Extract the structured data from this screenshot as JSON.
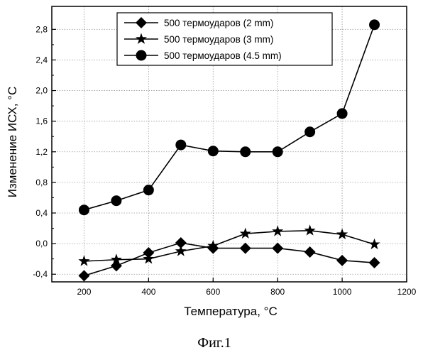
{
  "chart_data": {
    "type": "line",
    "xlabel": "Температура, °C",
    "ylabel": "Изменение  ИСХ, °C",
    "caption": "Фиг.1",
    "xlim": [
      100,
      1200
    ],
    "ylim": [
      -0.5,
      3.1
    ],
    "x_ticks": [
      200,
      400,
      600,
      800,
      1000,
      1200
    ],
    "x_tick_labels": [
      "200",
      "400",
      "600",
      "800",
      "1000",
      "1200"
    ],
    "y_ticks": [
      -0.4,
      0.0,
      0.4,
      0.8,
      1.2,
      1.6,
      2.0,
      2.4,
      2.8
    ],
    "y_tick_labels": [
      "-0,4",
      "0,0",
      "0,4",
      "0,8",
      "1,2",
      "1,6",
      "2,0",
      "2,4",
      "2,8"
    ],
    "grid": true,
    "legend_position": "top-right",
    "x": [
      200,
      300,
      400,
      500,
      600,
      700,
      800,
      900,
      1000,
      1100
    ],
    "series": [
      {
        "name": "500 термоударов (2 mm)",
        "marker": "diamond",
        "values": [
          -0.42,
          -0.29,
          -0.12,
          0.01,
          -0.06,
          -0.06,
          -0.06,
          -0.11,
          -0.22,
          -0.25
        ]
      },
      {
        "name": "500 термоударов (3 mm)",
        "marker": "star",
        "values": [
          -0.23,
          -0.21,
          -0.2,
          -0.1,
          -0.03,
          0.13,
          0.16,
          0.17,
          0.12,
          -0.01
        ]
      },
      {
        "name": "500 термоударов (4.5 mm)",
        "marker": "circle",
        "values": [
          0.44,
          0.56,
          0.7,
          1.29,
          1.21,
          1.2,
          1.2,
          1.46,
          1.7,
          2.86
        ]
      }
    ]
  }
}
